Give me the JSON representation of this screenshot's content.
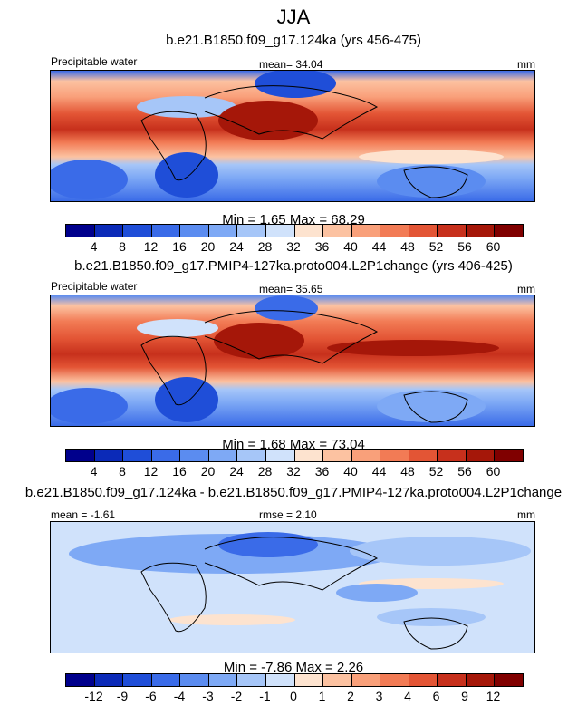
{
  "figure": {
    "title": "JJA"
  },
  "chart_data": [
    {
      "type": "heatmap",
      "title": "b.e21.B1850.f09_g17.124ka (yrs 456-475)",
      "left_label": "Precipitable water",
      "center_label": "mean=  34.04",
      "units": "mm",
      "stats": "Min =   1.65 Max =  68.29",
      "colorbar": {
        "levels": [
          "4",
          "8",
          "12",
          "16",
          "20",
          "24",
          "28",
          "32",
          "36",
          "40",
          "44",
          "48",
          "52",
          "56",
          "60"
        ],
        "colors": [
          "#00008c",
          "#0b2ab8",
          "#1f4ed8",
          "#3a6be8",
          "#5b8cf0",
          "#7ea9f5",
          "#a6c6f8",
          "#d0e2fb",
          "#fde3cf",
          "#fcc2a1",
          "#f9a07a",
          "#f27b55",
          "#e35535",
          "#c7301c",
          "#a51709",
          "#800000"
        ]
      }
    },
    {
      "type": "heatmap",
      "title": "b.e21.B1850.f09_g17.PMIP4-127ka.proto004.L2P1change (yrs 406-425)",
      "left_label": "Precipitable water",
      "center_label": "mean=  35.65",
      "units": "mm",
      "stats": "Min =   1.68 Max =  73.04",
      "colorbar": {
        "levels": [
          "4",
          "8",
          "12",
          "16",
          "20",
          "24",
          "28",
          "32",
          "36",
          "40",
          "44",
          "48",
          "52",
          "56",
          "60"
        ],
        "colors": [
          "#00008c",
          "#0b2ab8",
          "#1f4ed8",
          "#3a6be8",
          "#5b8cf0",
          "#7ea9f5",
          "#a6c6f8",
          "#d0e2fb",
          "#fde3cf",
          "#fcc2a1",
          "#f9a07a",
          "#f27b55",
          "#e35535",
          "#c7301c",
          "#a51709",
          "#800000"
        ]
      }
    },
    {
      "type": "heatmap",
      "title": "b.e21.B1850.f09_g17.124ka - b.e21.B1850.f09_g17.PMIP4-127ka.proto004.L2P1change",
      "left_label": "mean = -1.61",
      "center_label": "rmse =  2.10",
      "units": "mm",
      "stats": "Min =  -7.86 Max =   2.26",
      "colorbar": {
        "levels": [
          "-12",
          "-9",
          "-6",
          "-4",
          "-3",
          "-2",
          "-1",
          "0",
          "1",
          "2",
          "3",
          "4",
          "6",
          "9",
          "12"
        ],
        "colors": [
          "#00008c",
          "#0b2ab8",
          "#1f4ed8",
          "#3a6be8",
          "#5b8cf0",
          "#7ea9f5",
          "#a6c6f8",
          "#d0e2fb",
          "#fde3cf",
          "#fcc2a1",
          "#f9a07a",
          "#f27b55",
          "#e35535",
          "#c7301c",
          "#a51709",
          "#800000"
        ]
      }
    }
  ]
}
